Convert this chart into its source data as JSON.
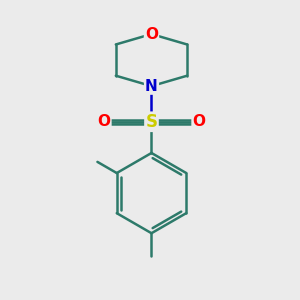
{
  "background_color": "#ebebeb",
  "bond_color": "#2d7a6a",
  "atom_colors": {
    "O": "#ff0000",
    "N": "#0000cd",
    "S": "#cccc00",
    "C": "#2d7a6a"
  },
  "figsize": [
    3.0,
    3.0
  ],
  "dpi": 100
}
